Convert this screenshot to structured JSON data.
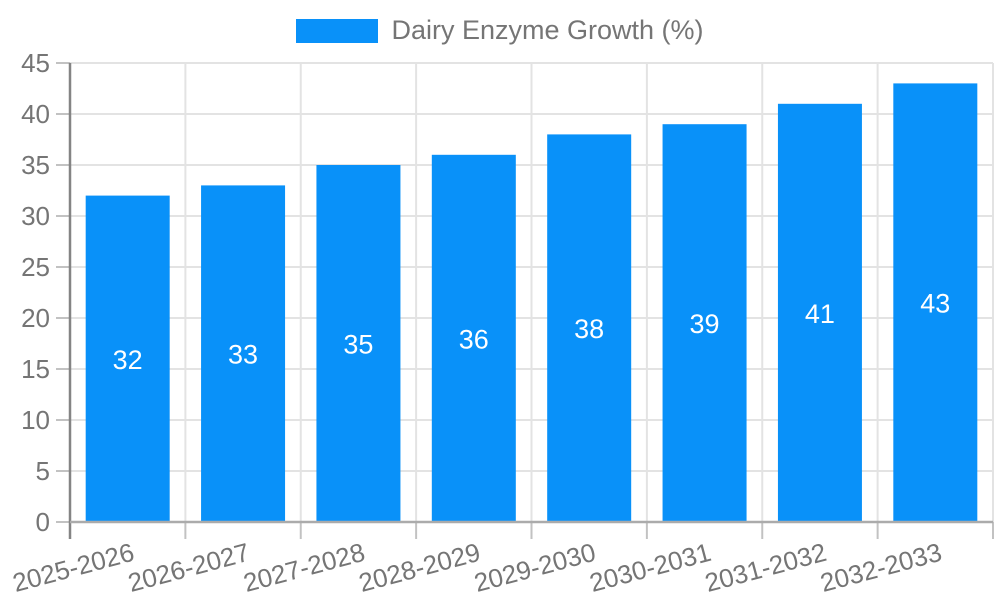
{
  "chart_data": {
    "type": "bar",
    "categories": [
      "2025-2026",
      "2026-2027",
      "2027-2028",
      "2028-2029",
      "2029-2030",
      "2030-2031",
      "2031-2032",
      "2032-2033"
    ],
    "series": [
      {
        "name": "Dairy Enzyme Growth (%)",
        "values": [
          32,
          33,
          35,
          36,
          38,
          39,
          41,
          43
        ],
        "color": "#0991f9"
      }
    ],
    "xlabel": "",
    "ylabel": "",
    "ylim": [
      0,
      45
    ],
    "yticks": [
      0,
      5,
      10,
      15,
      20,
      25,
      30,
      35,
      40,
      45
    ],
    "grid": true,
    "legend_position": "top-center",
    "x_tick_rotation_deg": -15,
    "value_label_position": "inside-center",
    "colors": {
      "bar": "#0991f9",
      "grid": "#e3e3e3",
      "tick": "#c2c2c2",
      "axis_line_y": "#848484",
      "axis_line_x": "#ababab",
      "axis_text": "#757575",
      "legend_text": "#757575",
      "value_text": "#ffffff",
      "background": "#ffffff"
    }
  }
}
